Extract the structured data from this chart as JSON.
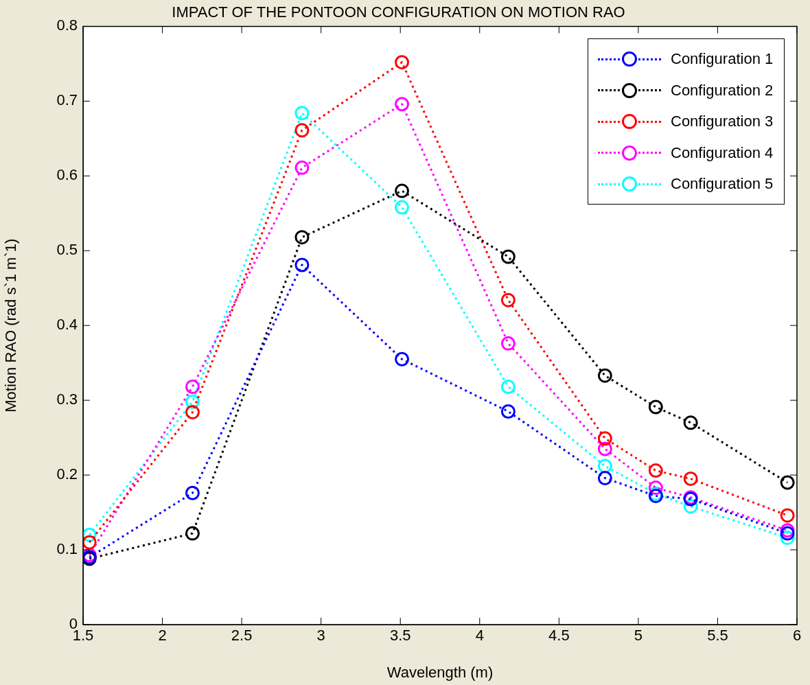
{
  "chart_data": {
    "type": "line",
    "title": "IMPACT OF THE PONTOON CONFIGURATION ON MOTION RAO",
    "xlabel": "Wavelength (m)",
    "ylabel": "Motion RAO (rad s`1 m`1)",
    "x": [
      1.54,
      2.19,
      2.88,
      3.51,
      4.18,
      4.79,
      5.11,
      5.33,
      5.94
    ],
    "series": [
      {
        "name": "Configuration 1",
        "color": "#0000ff",
        "values": [
          0.09,
          0.176,
          0.481,
          0.355,
          0.285,
          0.196,
          0.172,
          0.168,
          0.122
        ]
      },
      {
        "name": "Configuration 2",
        "color": "#000000",
        "values": [
          0.088,
          0.122,
          0.518,
          0.58,
          0.492,
          0.333,
          0.291,
          0.27,
          0.19
        ]
      },
      {
        "name": "Configuration 3",
        "color": "#ff0000",
        "values": [
          0.11,
          0.284,
          0.661,
          0.752,
          0.434,
          0.249,
          0.206,
          0.195,
          0.146
        ]
      },
      {
        "name": "Configuration 4",
        "color": "#ff00ff",
        "values": [
          0.093,
          0.318,
          0.611,
          0.696,
          0.376,
          0.235,
          0.183,
          0.17,
          0.126
        ]
      },
      {
        "name": "Configuration 5",
        "color": "#00ffff",
        "values": [
          0.12,
          0.298,
          0.684,
          0.558,
          0.318,
          0.212,
          0.175,
          0.158,
          0.116
        ]
      }
    ],
    "xlim": [
      1.5,
      6
    ],
    "xticks": [
      1.5,
      2,
      2.5,
      3,
      3.5,
      4,
      4.5,
      5,
      5.5,
      6
    ],
    "ylim": [
      0,
      0.8
    ],
    "yticks": [
      0,
      0.1,
      0.2,
      0.3,
      0.4,
      0.5,
      0.6,
      0.7,
      0.8
    ],
    "grid": false,
    "legend": "top right",
    "marker": "circle",
    "line_style": "dotted"
  }
}
